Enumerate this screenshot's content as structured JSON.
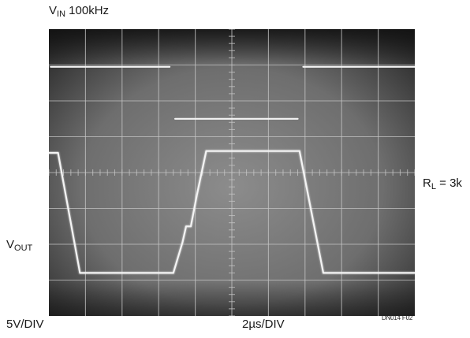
{
  "labels": {
    "vin_main": "V",
    "vin_sub": "IN",
    "vin_suffix": " 100kHz",
    "vout_main": "V",
    "vout_sub": "OUT",
    "rl_main": "R",
    "rl_sub": "L",
    "rl_suffix": " = 3k",
    "vertical_scale": "5V/DIV",
    "time_scale": "2µs/DIV",
    "figure_id": "DN014 F02"
  },
  "colors": {
    "screen_dark": "#1c1c1c",
    "screen_mid": "#6e6e6e",
    "screen_light": "#8c8c8c",
    "grid": "#c4c4c4",
    "trace": "#f4f4f4"
  },
  "chart_data": {
    "type": "line",
    "grid": {
      "divisions_x": 10,
      "divisions_y": 8,
      "minor_ticks_per_div": 5,
      "on": true
    },
    "x_scale": "2µs/DIV",
    "y_scale": "5V/DIV",
    "xlim_div": [
      0,
      10
    ],
    "ylim_div": [
      0,
      8
    ],
    "series": [
      {
        "name": "VIN",
        "segments": [
          [
            [
              0.05,
              6.95
            ],
            [
              3.3,
              6.95
            ]
          ],
          [
            [
              3.45,
              5.5
            ],
            [
              6.8,
              5.5
            ]
          ],
          [
            [
              6.95,
              6.95
            ],
            [
              10,
              6.95
            ]
          ]
        ]
      },
      {
        "name": "VOUT",
        "segments": [
          [
            [
              0,
              4.55
            ],
            [
              0.25,
              4.55
            ],
            [
              0.85,
              1.2
            ],
            [
              3.4,
              1.2
            ],
            [
              3.65,
              2.05
            ],
            [
              3.75,
              2.5
            ],
            [
              3.88,
              2.5
            ],
            [
              4.05,
              3.4
            ],
            [
              4.3,
              4.6
            ],
            [
              6.85,
              4.6
            ],
            [
              7.5,
              1.2
            ],
            [
              10,
              1.2
            ]
          ]
        ]
      }
    ]
  }
}
